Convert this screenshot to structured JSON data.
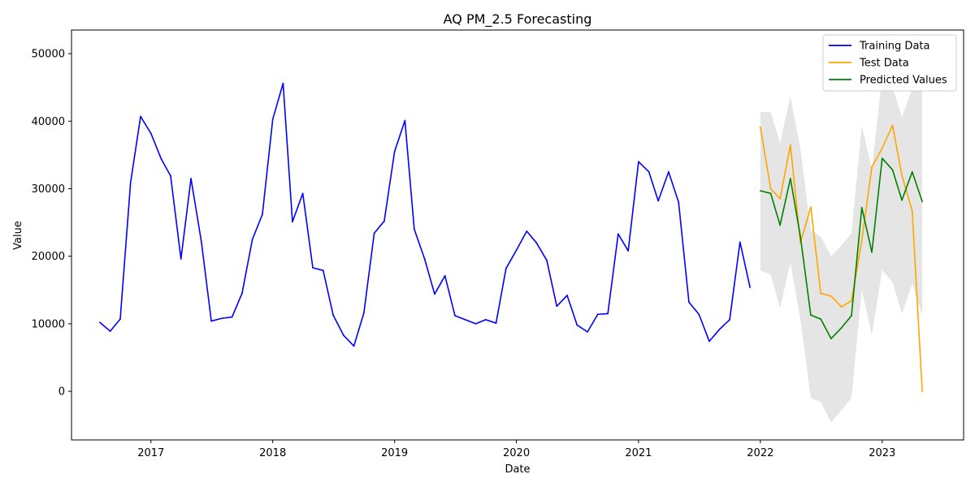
{
  "chart_data": {
    "type": "line",
    "title": "AQ PM_2.5 Forecasting",
    "xlabel": "Date",
    "ylabel": "Value",
    "xlim": [
      "2016-05-08",
      "2023-09-02"
    ],
    "ylim": [
      -7200,
      53500
    ],
    "x_ticks": [
      "2017",
      "2018",
      "2019",
      "2020",
      "2021",
      "2022",
      "2023"
    ],
    "y_ticks": [
      0,
      10000,
      20000,
      30000,
      40000,
      50000
    ],
    "grid": false,
    "legend_position": "top-right",
    "series": [
      {
        "name": "Training Data",
        "color": "#0000ff",
        "x": [
          "2016-08",
          "2016-09",
          "2016-10",
          "2016-11",
          "2016-12",
          "2017-01",
          "2017-02",
          "2017-03",
          "2017-04",
          "2017-05",
          "2017-06",
          "2017-07",
          "2017-08",
          "2017-09",
          "2017-10",
          "2017-11",
          "2017-12",
          "2018-01",
          "2018-02",
          "2018-03",
          "2018-04",
          "2018-05",
          "2018-06",
          "2018-07",
          "2018-08",
          "2018-09",
          "2018-10",
          "2018-11",
          "2018-12",
          "2019-01",
          "2019-02",
          "2019-03",
          "2019-04",
          "2019-05",
          "2019-06",
          "2019-07",
          "2019-08",
          "2019-09",
          "2019-10",
          "2019-11",
          "2019-12",
          "2020-01",
          "2020-02",
          "2020-03",
          "2020-04",
          "2020-05",
          "2020-06",
          "2020-07",
          "2020-08",
          "2020-09",
          "2020-10",
          "2020-11",
          "2020-12",
          "2021-01",
          "2021-02",
          "2021-03",
          "2021-04",
          "2021-05",
          "2021-06",
          "2021-07",
          "2021-08",
          "2021-09",
          "2021-10",
          "2021-11",
          "2021-12"
        ],
        "values": [
          10200,
          8900,
          10700,
          30900,
          40700,
          38200,
          34400,
          31900,
          19600,
          31500,
          22200,
          10400,
          10800,
          11000,
          14500,
          22500,
          26200,
          40300,
          45600,
          25100,
          29300,
          18300,
          17900,
          11300,
          8300,
          6700,
          11600,
          23400,
          25200,
          35500,
          40100,
          24000,
          19600,
          14400,
          17100,
          11200,
          10600,
          10000,
          10600,
          10100,
          18200,
          20900,
          23700,
          22000,
          19400,
          12600,
          14200,
          9800,
          8800,
          11400,
          11500,
          23300,
          20800,
          34000,
          32500,
          28200,
          32500,
          28000,
          13200,
          11400,
          7400,
          9200,
          10600,
          22100,
          15400
        ]
      },
      {
        "name": "Test Data",
        "color": "#ffa500",
        "x": [
          "2022-01",
          "2022-02",
          "2022-03",
          "2022-04",
          "2022-05",
          "2022-06",
          "2022-07",
          "2022-08",
          "2022-09",
          "2022-10",
          "2022-11",
          "2022-12",
          "2023-01",
          "2023-02",
          "2023-03",
          "2023-04",
          "2023-05"
        ],
        "values": [
          39100,
          30000,
          28500,
          36500,
          22000,
          27300,
          14500,
          14100,
          12500,
          13400,
          22400,
          33200,
          36000,
          39400,
          32000,
          26700,
          0
        ]
      },
      {
        "name": "Predicted Values",
        "color": "#008000",
        "x": [
          "2022-01",
          "2022-02",
          "2022-03",
          "2022-04",
          "2022-05",
          "2022-06",
          "2022-07",
          "2022-08",
          "2022-09",
          "2022-10",
          "2022-11",
          "2022-12",
          "2023-01",
          "2023-02",
          "2023-03",
          "2023-04",
          "2023-05"
        ],
        "values": [
          29700,
          29300,
          24600,
          31500,
          22900,
          11300,
          10700,
          7800,
          9400,
          11200,
          27200,
          20600,
          34500,
          32800,
          28300,
          32500,
          28100
        ]
      }
    ],
    "confidence_band": {
      "color": "#d3d3d3",
      "x": [
        "2022-01",
        "2022-02",
        "2022-03",
        "2022-04",
        "2022-05",
        "2022-06",
        "2022-07",
        "2022-08",
        "2022-09",
        "2022-10",
        "2022-11",
        "2022-12",
        "2023-01",
        "2023-02",
        "2023-03",
        "2023-04",
        "2023-05"
      ],
      "upper": [
        41400,
        41300,
        36800,
        43700,
        35900,
        23900,
        22900,
        20000,
        21600,
        23400,
        39400,
        32900,
        46700,
        45100,
        40600,
        44800,
        44400
      ],
      "lower": [
        17900,
        17300,
        12300,
        19100,
        10600,
        -1000,
        -1600,
        -4600,
        -2800,
        -1000,
        15000,
        8300,
        18000,
        16100,
        11500,
        15900,
        11300
      ]
    }
  }
}
